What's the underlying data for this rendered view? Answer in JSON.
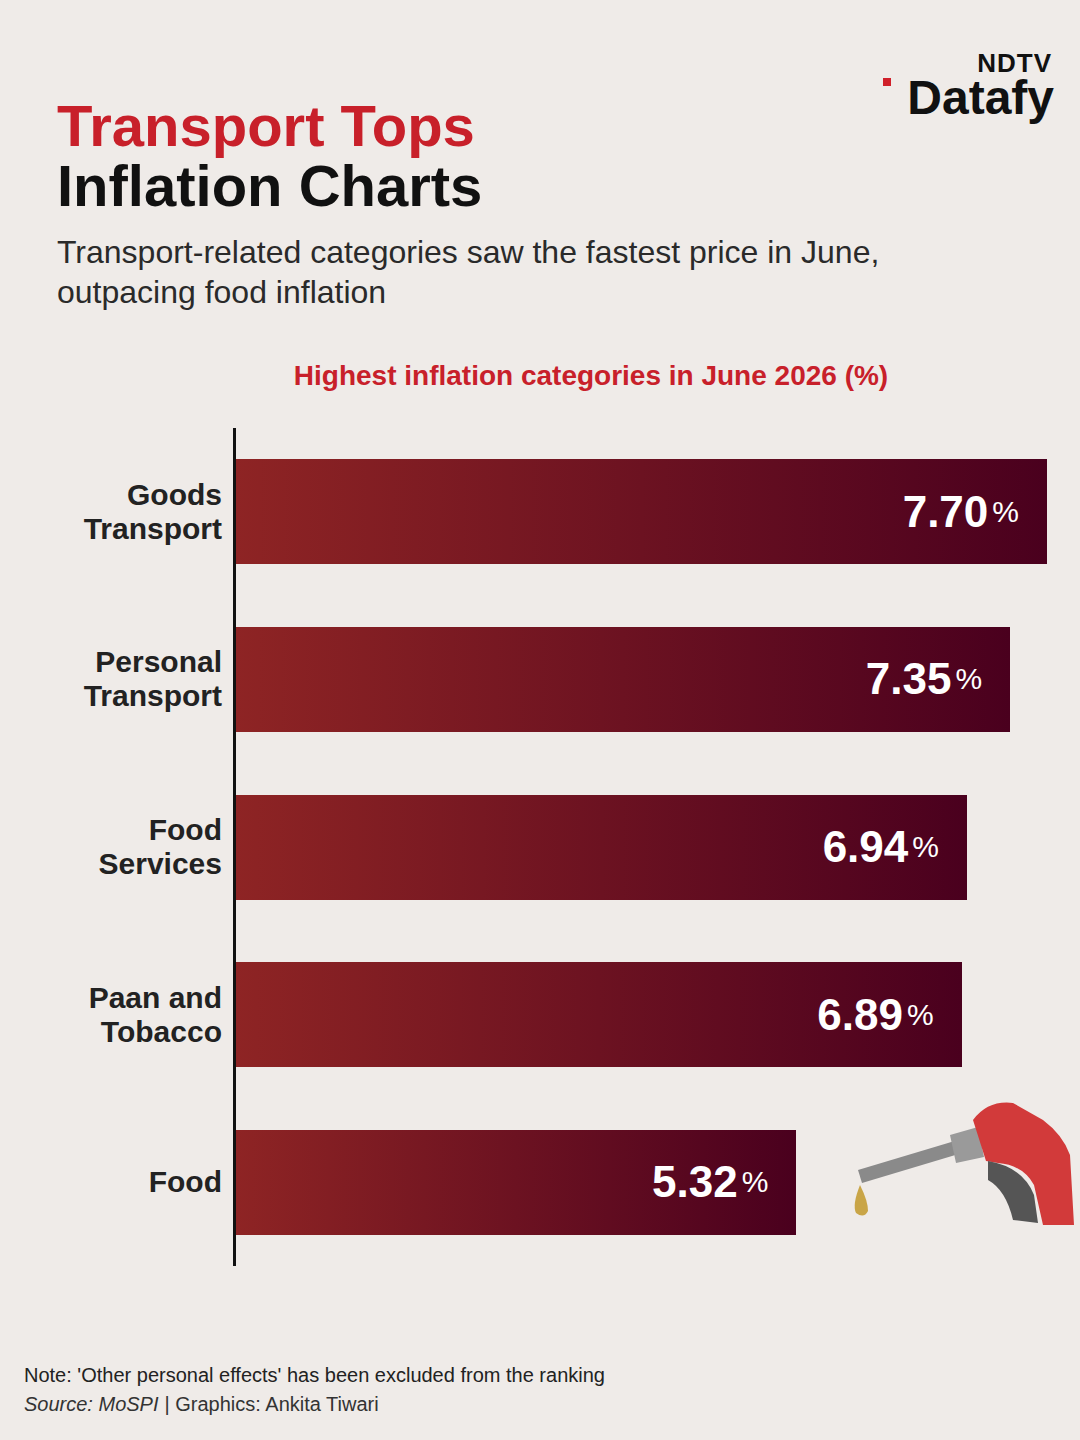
{
  "header": {
    "brand": [
      "NDTV",
      "Datafy"
    ],
    "headline": [
      "Transport Tops",
      "Inflation Charts"
    ],
    "subtitle": "Transport-related categories saw the fastest price in June, outpacing food inflation"
  },
  "chart_data": {
    "type": "bar",
    "title": "Highest inflation categories in June 2026 (%)",
    "categories": [
      "Goods Transport",
      "Personal Transport",
      "Food Services",
      "Paan and Tobacco",
      "Food"
    ],
    "values": [
      7.7,
      7.35,
      6.94,
      6.89,
      5.32
    ],
    "value_labels": [
      "7.70%",
      "7.35%",
      "6.94%",
      "6.89%",
      "5.32%"
    ],
    "color": "#8e2424",
    "xlim": [
      0,
      7.7
    ],
    "orientation": "horizontal",
    "data_labels": true,
    "tick_labels": "y",
    "grid": false
  },
  "footer": {
    "note": "Note: 'Other personal effects' has been excluded from the ranking",
    "source": "Source: MoSPI",
    "credit": "| Graphics: Ankita Tiwari"
  }
}
